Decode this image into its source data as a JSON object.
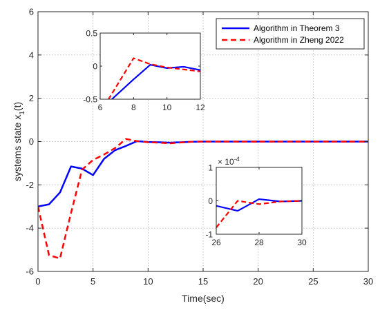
{
  "chart_data": [
    {
      "id": "main",
      "type": "line",
      "xlabel": "Time(sec)",
      "ylabel": "systems state x",
      "ylabel_sub": "1",
      "ylabel_suffix": "(t)",
      "xlim": [
        0,
        30
      ],
      "ylim": [
        -6,
        6
      ],
      "xticks": [
        0,
        5,
        10,
        15,
        20,
        25,
        30
      ],
      "yticks": [
        -6,
        -4,
        -2,
        0,
        2,
        4,
        6
      ],
      "grid": true,
      "legend_position": "top-right",
      "series": [
        {
          "name": "Algorithm in Theorem 3",
          "color": "#0000ff",
          "dash": "solid",
          "x": [
            0,
            1,
            2,
            3,
            4,
            5,
            6,
            7,
            8,
            9,
            10,
            11,
            12,
            13,
            14,
            15,
            20,
            25,
            30
          ],
          "y": [
            -3.0,
            -2.9,
            -2.35,
            -1.15,
            -1.25,
            -1.55,
            -0.8,
            -0.4,
            -0.2,
            0.02,
            -0.02,
            -0.03,
            -0.05,
            -0.03,
            -0.01,
            0.0,
            0.0,
            0.0,
            0.0
          ]
        },
        {
          "name": "Algorithm in Zheng 2022",
          "color": "#ff0000",
          "dash": "dashed",
          "x": [
            0,
            1,
            2,
            3,
            4,
            5,
            6,
            7,
            8,
            9,
            10,
            11,
            12,
            13,
            14,
            15,
            20,
            25,
            30
          ],
          "y": [
            -3.0,
            -5.25,
            -5.4,
            -3.3,
            -1.3,
            -0.85,
            -0.6,
            -0.3,
            0.12,
            0.02,
            -0.03,
            -0.05,
            -0.08,
            -0.04,
            -0.01,
            0.0,
            0.0,
            0.0,
            0.0
          ]
        }
      ]
    },
    {
      "id": "inset1",
      "type": "line",
      "xlim": [
        6,
        12
      ],
      "ylim": [
        -0.5,
        0.5
      ],
      "xticks": [
        6,
        8,
        10,
        12
      ],
      "yticks": [
        -0.5,
        0,
        0.5
      ],
      "yticklabels": [
        "-0.5",
        "0",
        "0.5"
      ],
      "grid": false,
      "series": [
        {
          "name": "Algorithm in Theorem 3",
          "color": "#0000ff",
          "dash": "solid",
          "x": [
            6,
            6.7,
            8,
            9,
            10,
            11,
            12
          ],
          "y": [
            -0.8,
            -0.5,
            -0.2,
            0.02,
            -0.03,
            -0.01,
            -0.06
          ]
        },
        {
          "name": "Algorithm in Zheng 2022",
          "color": "#ff0000",
          "dash": "dashed",
          "x": [
            6,
            6.5,
            8,
            9,
            10,
            11,
            12
          ],
          "y": [
            -0.7,
            -0.5,
            0.12,
            0.03,
            -0.02,
            -0.05,
            -0.08
          ]
        }
      ]
    },
    {
      "id": "inset2",
      "type": "line",
      "xlim": [
        26,
        30
      ],
      "ylim": [
        -1,
        1
      ],
      "xticks": [
        26,
        28,
        30
      ],
      "yticks": [
        -1,
        0,
        1
      ],
      "yticklabels": [
        "-1",
        "0",
        "1"
      ],
      "y_multiplier": "× 10",
      "y_multiplier_exp": "-4",
      "grid": false,
      "series": [
        {
          "name": "Algorithm in Theorem 3",
          "color": "#0000ff",
          "dash": "solid",
          "x": [
            26,
            27,
            28,
            29,
            30
          ],
          "y": [
            -0.15,
            -0.3,
            0.05,
            -0.02,
            0.0
          ]
        },
        {
          "name": "Algorithm in Zheng 2022",
          "color": "#ff0000",
          "dash": "dashed",
          "x": [
            26,
            27,
            28,
            29,
            30
          ],
          "y": [
            -0.8,
            0.0,
            -0.1,
            -0.02,
            0.0
          ]
        }
      ]
    }
  ]
}
